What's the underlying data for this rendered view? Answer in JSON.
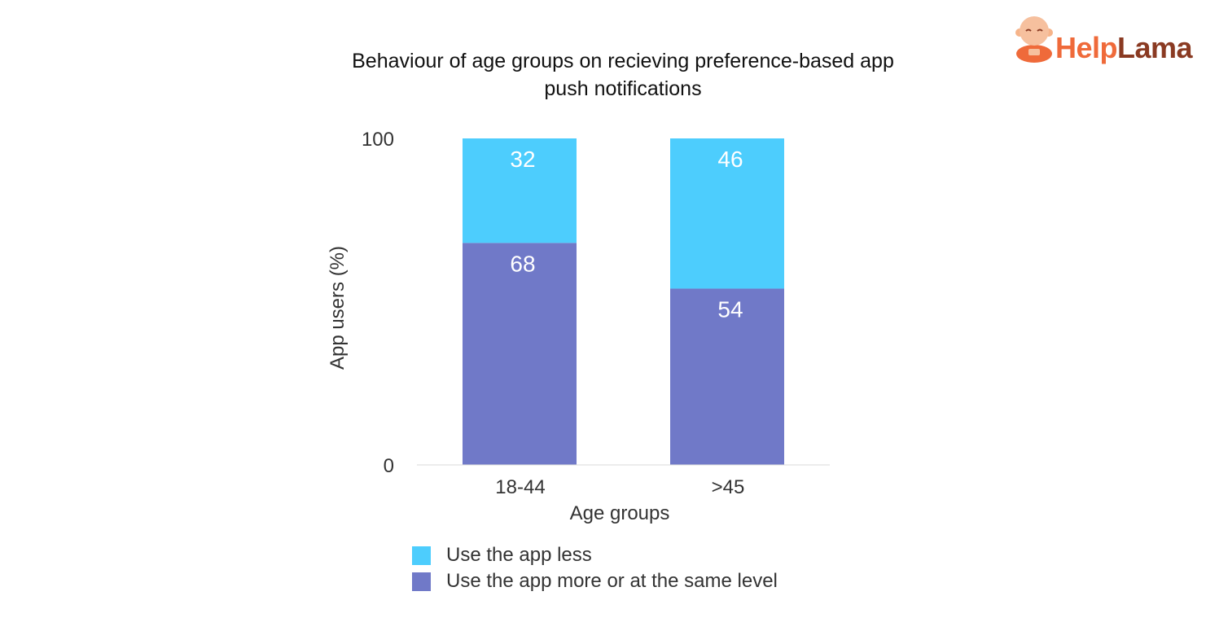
{
  "logo": {
    "part1": "Help",
    "part2": "Lama"
  },
  "chart_data": {
    "type": "bar",
    "stacked": true,
    "title": "Behaviour of age groups on recieving preference-based app push notifications",
    "title_lines": [
      "Behaviour of age groups on recieving preference-based app",
      "push notifications"
    ],
    "xlabel": "Age groups",
    "ylabel": "App users (%)",
    "categories": [
      "18-44",
      ">45"
    ],
    "ylim": [
      0,
      100
    ],
    "yticks": [
      0,
      100
    ],
    "series": [
      {
        "name": "Use the app more or at the same level",
        "values": [
          68,
          54
        ],
        "color": "#7079c8"
      },
      {
        "name": "Use the app less",
        "values": [
          32,
          46
        ],
        "color": "#4dcdfd"
      }
    ],
    "legend": {
      "position": "bottom-left",
      "order": [
        "Use the app less",
        "Use the app more or at the same level"
      ]
    },
    "grid": false
  }
}
